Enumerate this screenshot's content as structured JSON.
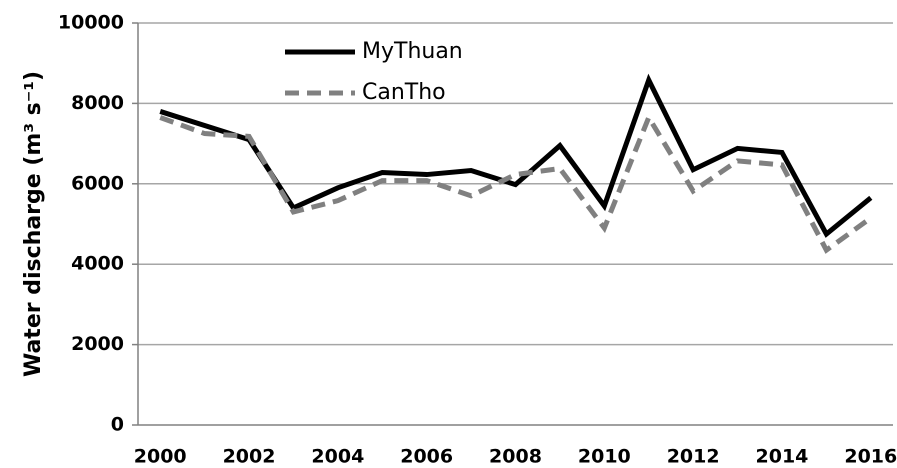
{
  "chart_data": {
    "type": "line",
    "y_label": "Water discharge (m³ s⁻¹)",
    "categories": [
      "2000",
      null,
      "2002",
      null,
      "2004",
      null,
      "2006",
      null,
      "2008",
      null,
      "2010",
      null,
      "2012",
      null,
      "2014",
      null,
      "2016"
    ],
    "series": [
      {
        "name": "MyThuan",
        "color": "#000000",
        "line_style": "solid",
        "values": [
          7800,
          7450,
          7100,
          5400,
          5900,
          6280,
          6230,
          6330,
          5980,
          6950,
          5450,
          8580,
          6350,
          6880,
          6780,
          4750,
          5650
        ]
      },
      {
        "name": "CanTho",
        "color": "#808080",
        "line_style": "dashed",
        "values": [
          7650,
          7250,
          7180,
          5300,
          5580,
          6080,
          6080,
          5700,
          6230,
          6380,
          4900,
          7650,
          5820,
          6570,
          6470,
          4350,
          5150
        ]
      }
    ],
    "ylim": [
      0,
      10000
    ],
    "yticks": [
      0,
      2000,
      4000,
      6000,
      8000,
      10000
    ],
    "grid": true,
    "legend": "upper-left"
  }
}
